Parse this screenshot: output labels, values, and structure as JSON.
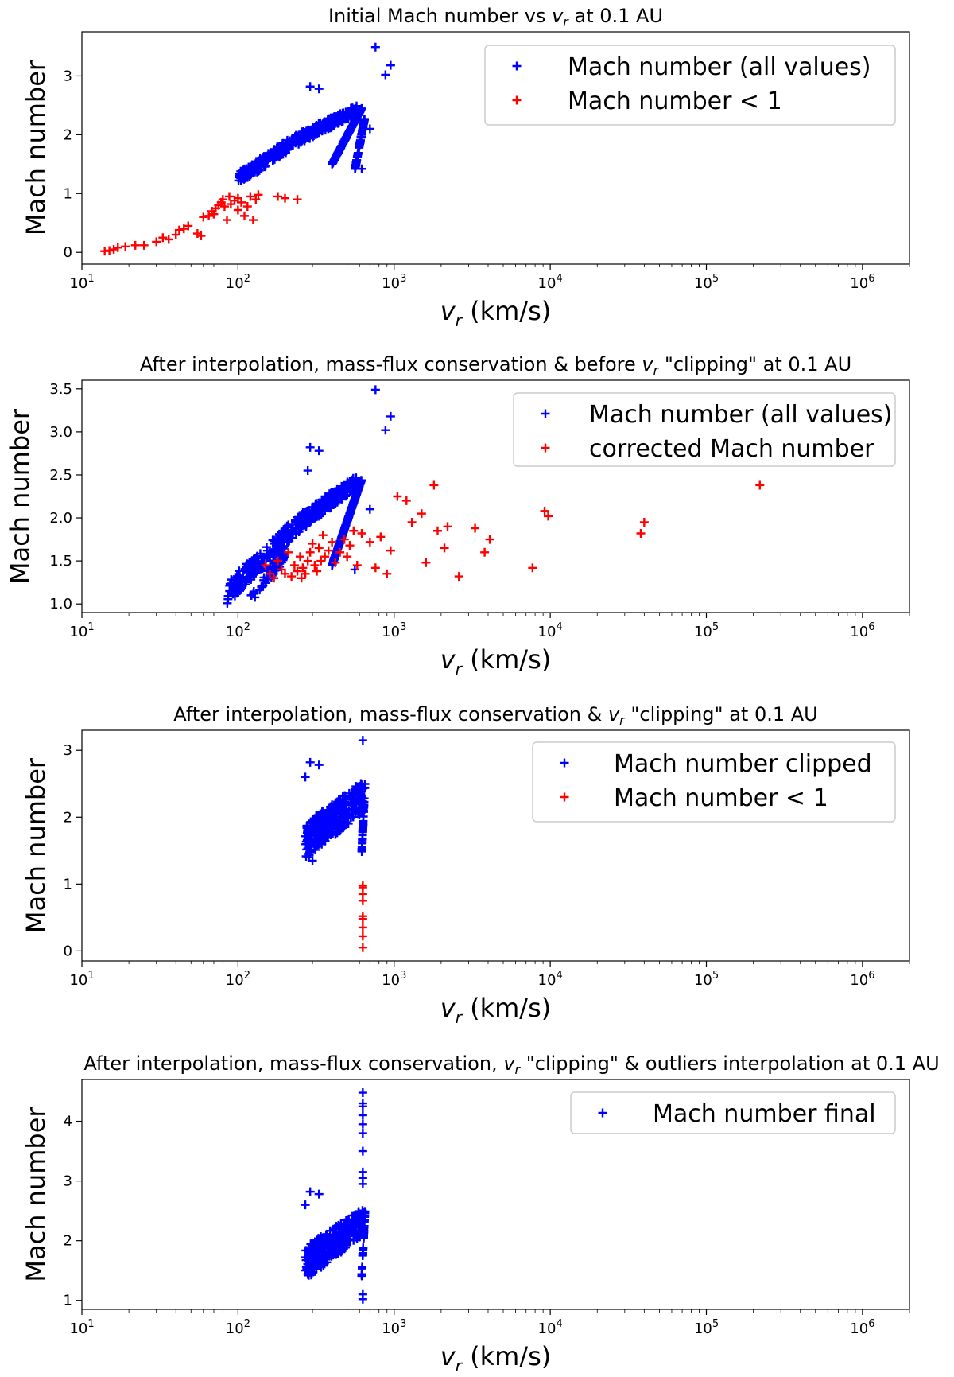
{
  "colors": {
    "blue": "#0000ff",
    "red": "#ff0000",
    "axis": "#000000"
  },
  "marker": "plus",
  "chart_data": [
    {
      "type": "scatter",
      "title": "Initial Mach number vs $v_r$ at 0.1 AU",
      "title_parts": [
        "Initial Mach number vs",
        "v",
        "r",
        "at 0.1 AU"
      ],
      "xlabel": "v_r (km/s)",
      "xlabel_sym": "v",
      "xlabel_sub": "r",
      "xlabel_unit": "(km/s)",
      "ylabel": "Mach number",
      "xscale": "log",
      "xlim": [
        10,
        2000000
      ],
      "xticks": [
        10,
        100,
        1000,
        10000,
        100000,
        1000000
      ],
      "xtick_labels": [
        {
          "base": "10",
          "exp": "1"
        },
        {
          "base": "10",
          "exp": "2"
        },
        {
          "base": "10",
          "exp": "3"
        },
        {
          "base": "10",
          "exp": "4"
        },
        {
          "base": "10",
          "exp": "5"
        },
        {
          "base": "10",
          "exp": "6"
        }
      ],
      "ylim": [
        -0.2,
        3.75
      ],
      "yticks": [
        "0",
        "1",
        "2",
        "3"
      ],
      "legend": {
        "position": "top-right",
        "entries": [
          "Mach number (all values)",
          "Mach number < 1"
        ]
      },
      "series": [
        {
          "name": "Mach number (all values)",
          "color": "#0000ff",
          "bands": [
            {
              "x": [
                100,
                250
              ],
              "y": [
                1.15,
                1.85
              ],
              "y2": [
                1.35,
                2.05
              ],
              "n": 180
            },
            {
              "x": [
                250,
                580
              ],
              "y": [
                1.85,
                2.35
              ],
              "y2": [
                2.05,
                2.5
              ],
              "n": 220
            },
            {
              "x": [
                400,
                620
              ],
              "y": [
                1.5,
                2.45
              ],
              "y2": [
                1.5,
                2.45
              ],
              "n": 160
            },
            {
              "x": [
                560,
                650
              ],
              "y": [
                1.4,
                2.3
              ],
              "y2": [
                1.4,
                2.3
              ],
              "n": 60
            }
          ],
          "points": [
            [
              760,
              3.49
            ],
            [
              950,
              3.18
            ],
            [
              880,
              3.02
            ],
            [
              290,
              2.82
            ],
            [
              330,
              2.78
            ],
            [
              700,
              2.1
            ],
            [
              620,
              1.42
            ]
          ]
        },
        {
          "name": "Mach number < 1",
          "color": "#ff0000",
          "points": [
            [
              14,
              0.02
            ],
            [
              15,
              0.03
            ],
            [
              16,
              0.05
            ],
            [
              17,
              0.08
            ],
            [
              19,
              0.1
            ],
            [
              22,
              0.12
            ],
            [
              25,
              0.12
            ],
            [
              30,
              0.18
            ],
            [
              33,
              0.25
            ],
            [
              36,
              0.22
            ],
            [
              40,
              0.3
            ],
            [
              42,
              0.38
            ],
            [
              45,
              0.4
            ],
            [
              48,
              0.45
            ],
            [
              55,
              0.32
            ],
            [
              58,
              0.28
            ],
            [
              60,
              0.6
            ],
            [
              65,
              0.62
            ],
            [
              68,
              0.7
            ],
            [
              70,
              0.65
            ],
            [
              72,
              0.75
            ],
            [
              75,
              0.8
            ],
            [
              78,
              0.85
            ],
            [
              80,
              0.9
            ],
            [
              82,
              0.78
            ],
            [
              85,
              0.55
            ],
            [
              88,
              0.95
            ],
            [
              90,
              0.82
            ],
            [
              95,
              0.88
            ],
            [
              100,
              0.72
            ],
            [
              100,
              0.92
            ],
            [
              105,
              0.85
            ],
            [
              110,
              0.62
            ],
            [
              115,
              0.78
            ],
            [
              120,
              0.95
            ],
            [
              125,
              0.55
            ],
            [
              130,
              0.9
            ],
            [
              135,
              0.98
            ],
            [
              180,
              0.95
            ],
            [
              200,
              0.92
            ],
            [
              240,
              0.9
            ]
          ]
        }
      ]
    },
    {
      "type": "scatter",
      "title": "After interpolation, mass-flux conservation & before $v_r$ \"clipping\" at 0.1 AU",
      "title_parts": [
        "After interpolation, mass-flux conservation & before",
        "v",
        "r",
        "\"clipping\" at 0.1 AU"
      ],
      "xlabel": "v_r (km/s)",
      "xlabel_sym": "v",
      "xlabel_sub": "r",
      "xlabel_unit": "(km/s)",
      "ylabel": "Mach number",
      "xscale": "log",
      "xlim": [
        10,
        2000000
      ],
      "xticks": [
        10,
        100,
        1000,
        10000,
        100000,
        1000000
      ],
      "xtick_labels": [
        {
          "base": "10",
          "exp": "1"
        },
        {
          "base": "10",
          "exp": "2"
        },
        {
          "base": "10",
          "exp": "3"
        },
        {
          "base": "10",
          "exp": "4"
        },
        {
          "base": "10",
          "exp": "5"
        },
        {
          "base": "10",
          "exp": "6"
        }
      ],
      "ylim": [
        0.9,
        3.6
      ],
      "yticks": [
        "1.0",
        "1.5",
        "2.0",
        "2.5",
        "3.0",
        "3.5"
      ],
      "legend": {
        "position": "top-right",
        "entries": [
          "Mach number (all values)",
          "corrected Mach number"
        ]
      },
      "series": [
        {
          "name": "Mach number (all values)",
          "color": "#0000ff",
          "bands": [
            {
              "x": [
                85,
                250
              ],
              "y": [
                1.0,
                1.85
              ],
              "y2": [
                1.25,
                2.05
              ],
              "n": 200
            },
            {
              "x": [
                250,
                580
              ],
              "y": [
                1.85,
                2.35
              ],
              "y2": [
                2.05,
                2.5
              ],
              "n": 220
            },
            {
              "x": [
                400,
                620
              ],
              "y": [
                1.45,
                2.45
              ],
              "y2": [
                1.45,
                2.45
              ],
              "n": 170
            },
            {
              "x": [
                120,
                200
              ],
              "y": [
                1.0,
                1.5
              ],
              "y2": [
                1.1,
                1.7
              ],
              "n": 60
            }
          ],
          "points": [
            [
              760,
              3.49
            ],
            [
              950,
              3.18
            ],
            [
              880,
              3.02
            ],
            [
              290,
              2.82
            ],
            [
              330,
              2.78
            ],
            [
              280,
              2.55
            ],
            [
              700,
              2.1
            ],
            [
              560,
              1.4
            ]
          ]
        },
        {
          "name": "corrected Mach number",
          "color": "#ff0000",
          "points": [
            [
              150,
              1.45
            ],
            [
              160,
              1.35
            ],
            [
              170,
              1.3
            ],
            [
              180,
              1.5
            ],
            [
              190,
              1.4
            ],
            [
              200,
              1.35
            ],
            [
              210,
              1.6
            ],
            [
              220,
              1.32
            ],
            [
              230,
              1.45
            ],
            [
              240,
              1.38
            ],
            [
              250,
              1.55
            ],
            [
              255,
              1.3
            ],
            [
              260,
              1.42
            ],
            [
              270,
              1.35
            ],
            [
              280,
              1.5
            ],
            [
              290,
              1.6
            ],
            [
              300,
              1.7
            ],
            [
              310,
              1.45
            ],
            [
              320,
              1.38
            ],
            [
              330,
              1.65
            ],
            [
              340,
              1.5
            ],
            [
              350,
              1.8
            ],
            [
              360,
              1.55
            ],
            [
              380,
              1.62
            ],
            [
              400,
              1.72
            ],
            [
              420,
              1.48
            ],
            [
              450,
              1.6
            ],
            [
              480,
              1.75
            ],
            [
              500,
              1.55
            ],
            [
              520,
              1.68
            ],
            [
              550,
              1.85
            ],
            [
              580,
              1.45
            ],
            [
              620,
              1.82
            ],
            [
              700,
              1.72
            ],
            [
              760,
              1.42
            ],
            [
              820,
              1.78
            ],
            [
              900,
              1.35
            ],
            [
              950,
              1.62
            ],
            [
              1050,
              2.25
            ],
            [
              1200,
              2.2
            ],
            [
              1300,
              1.95
            ],
            [
              1500,
              2.05
            ],
            [
              1600,
              1.48
            ],
            [
              1800,
              2.38
            ],
            [
              1900,
              1.85
            ],
            [
              2100,
              1.65
            ],
            [
              2200,
              1.9
            ],
            [
              2600,
              1.32
            ],
            [
              3300,
              1.88
            ],
            [
              3800,
              1.6
            ],
            [
              4100,
              1.75
            ],
            [
              7700,
              1.42
            ],
            [
              9200,
              2.08
            ],
            [
              9700,
              2.02
            ],
            [
              38000,
              1.82
            ],
            [
              40000,
              1.95
            ],
            [
              220000,
              2.38
            ]
          ]
        }
      ]
    },
    {
      "type": "scatter",
      "title": "After interpolation, mass-flux conservation & $v_r$ \"clipping\" at 0.1 AU",
      "title_parts": [
        "After interpolation, mass-flux conservation &",
        "v",
        "r",
        "\"clipping\" at 0.1 AU"
      ],
      "xlabel": "v_r (km/s)",
      "xlabel_sym": "v",
      "xlabel_sub": "r",
      "xlabel_unit": "(km/s)",
      "ylabel": "Mach number",
      "xscale": "log",
      "xlim": [
        10,
        2000000
      ],
      "xticks": [
        10,
        100,
        1000,
        10000,
        100000,
        1000000
      ],
      "xtick_labels": [
        {
          "base": "10",
          "exp": "1"
        },
        {
          "base": "10",
          "exp": "2"
        },
        {
          "base": "10",
          "exp": "3"
        },
        {
          "base": "10",
          "exp": "4"
        },
        {
          "base": "10",
          "exp": "5"
        },
        {
          "base": "10",
          "exp": "6"
        }
      ],
      "ylim": [
        -0.15,
        3.3
      ],
      "yticks": [
        "0",
        "1",
        "2",
        "3"
      ],
      "legend": {
        "position": "top-right",
        "entries": [
          "Mach number clipped",
          "Mach number < 1"
        ]
      },
      "series": [
        {
          "name": "Mach number clipped",
          "color": "#0000ff",
          "bands": [
            {
              "x": [
                270,
                640
              ],
              "y": [
                1.35,
                2.1
              ],
              "y2": [
                1.9,
                2.55
              ],
              "n": 320
            },
            {
              "x": [
                620,
                650
              ],
              "y": [
                1.45,
                2.5
              ],
              "y2": [
                1.45,
                2.5
              ],
              "n": 40
            }
          ],
          "points": [
            [
              290,
              2.82
            ],
            [
              330,
              2.78
            ],
            [
              630,
              3.15
            ],
            [
              270,
              2.6
            ],
            [
              300,
              1.35
            ]
          ]
        },
        {
          "name": "Mach number < 1",
          "color": "#ff0000",
          "points": [
            [
              630,
              0.05
            ],
            [
              630,
              0.22
            ],
            [
              630,
              0.35
            ],
            [
              630,
              0.48
            ],
            [
              630,
              0.52
            ],
            [
              630,
              0.75
            ],
            [
              630,
              0.85
            ],
            [
              630,
              0.95
            ],
            [
              630,
              0.98
            ]
          ]
        }
      ]
    },
    {
      "type": "scatter",
      "title": "After interpolation, mass-flux conservation, $v_r$ \"clipping\" & outliers interpolation at 0.1 AU",
      "title_parts": [
        "After interpolation, mass-flux conservation,",
        "v",
        "r",
        "\"clipping\" & outliers interpolation at 0.1 AU"
      ],
      "xlabel": "v_r (km/s)",
      "xlabel_sym": "v",
      "xlabel_sub": "r",
      "xlabel_unit": "(km/s)",
      "ylabel": "Mach number",
      "xscale": "log",
      "xlim": [
        10,
        2000000
      ],
      "xticks": [
        10,
        100,
        1000,
        10000,
        100000,
        1000000
      ],
      "xtick_labels": [
        {
          "base": "10",
          "exp": "1"
        },
        {
          "base": "10",
          "exp": "2"
        },
        {
          "base": "10",
          "exp": "3"
        },
        {
          "base": "10",
          "exp": "4"
        },
        {
          "base": "10",
          "exp": "5"
        },
        {
          "base": "10",
          "exp": "6"
        }
      ],
      "ylim": [
        0.85,
        4.7
      ],
      "yticks": [
        "1",
        "2",
        "3",
        "4"
      ],
      "legend": {
        "position": "top-right",
        "entries": [
          "Mach number final"
        ]
      },
      "series": [
        {
          "name": "Mach number final",
          "color": "#0000ff",
          "bands": [
            {
              "x": [
                270,
                640
              ],
              "y": [
                1.35,
                2.1
              ],
              "y2": [
                1.9,
                2.55
              ],
              "n": 320
            },
            {
              "x": [
                620,
                650
              ],
              "y": [
                1.4,
                2.5
              ],
              "y2": [
                1.4,
                2.5
              ],
              "n": 40
            }
          ],
          "points": [
            [
              290,
              2.82
            ],
            [
              330,
              2.78
            ],
            [
              630,
              1.02
            ],
            [
              630,
              1.1
            ],
            [
              630,
              2.95
            ],
            [
              630,
              3.05
            ],
            [
              630,
              3.15
            ],
            [
              630,
              3.5
            ],
            [
              630,
              3.8
            ],
            [
              630,
              3.95
            ],
            [
              630,
              4.1
            ],
            [
              630,
              4.25
            ],
            [
              630,
              4.3
            ],
            [
              630,
              4.48
            ],
            [
              270,
              2.6
            ]
          ]
        }
      ]
    }
  ]
}
